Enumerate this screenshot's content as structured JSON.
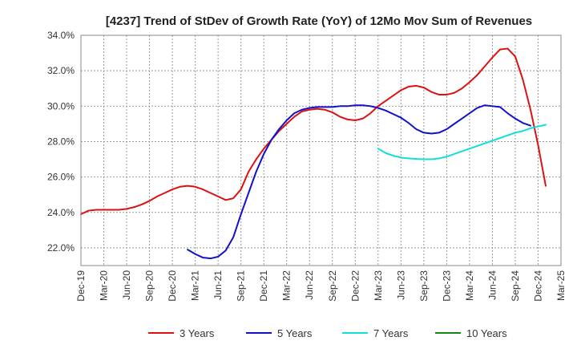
{
  "chart_data": {
    "type": "line",
    "title": "[4237]  Trend of StDev of Growth Rate (YoY) of 12Mo Mov Sum of Revenues",
    "xlabel": "",
    "ylabel": "",
    "ylim": [
      21.0,
      34.0
    ],
    "y_ticks": [
      22.0,
      24.0,
      26.0,
      28.0,
      30.0,
      32.0,
      34.0
    ],
    "y_tick_labels": [
      "22.0%",
      "24.0%",
      "26.0%",
      "28.0%",
      "30.0%",
      "32.0%",
      "34.0%"
    ],
    "x_range_months": [
      0,
      63
    ],
    "x_tick_labels": [
      "Dec-19",
      "Mar-20",
      "Jun-20",
      "Sep-20",
      "Dec-20",
      "Mar-21",
      "Jun-21",
      "Sep-21",
      "Dec-21",
      "Mar-22",
      "Jun-22",
      "Sep-22",
      "Dec-22",
      "Mar-23",
      "Jun-23",
      "Sep-23",
      "Dec-23",
      "Mar-24",
      "Jun-24",
      "Sep-24",
      "Dec-24",
      "Mar-25"
    ],
    "grid": true,
    "legend_position": "bottom",
    "series": [
      {
        "name": "3 Years",
        "color": "#dd1111",
        "start_month": 0,
        "values": [
          23.9,
          24.1,
          24.15,
          24.15,
          24.15,
          24.15,
          24.2,
          24.3,
          24.45,
          24.65,
          24.9,
          25.1,
          25.3,
          25.45,
          25.5,
          25.45,
          25.3,
          25.1,
          24.9,
          24.7,
          24.8,
          25.3,
          26.3,
          27.0,
          27.6,
          28.1,
          28.6,
          29.0,
          29.4,
          29.7,
          29.8,
          29.85,
          29.8,
          29.65,
          29.4,
          29.25,
          29.2,
          29.3,
          29.6,
          30.0,
          30.3,
          30.6,
          30.9,
          31.1,
          31.15,
          31.05,
          30.8,
          30.65,
          30.65,
          30.75,
          31.0,
          31.35,
          31.75,
          32.25,
          32.75,
          33.2,
          33.25,
          32.8,
          31.5,
          29.8,
          27.8,
          25.5
        ]
      },
      {
        "name": "5 Years",
        "color": "#1111cc",
        "start_month": 14,
        "values": [
          21.9,
          21.65,
          21.45,
          21.4,
          21.5,
          21.85,
          22.6,
          23.9,
          25.1,
          26.3,
          27.3,
          28.1,
          28.7,
          29.2,
          29.6,
          29.8,
          29.9,
          29.95,
          29.95,
          29.95,
          30.0,
          30.0,
          30.05,
          30.05,
          30.0,
          29.9,
          29.75,
          29.55,
          29.35,
          29.05,
          28.7,
          28.5,
          28.45,
          28.5,
          28.7,
          29.0,
          29.3,
          29.6,
          29.9,
          30.05,
          30.0,
          29.95,
          29.6,
          29.3,
          29.05,
          28.9
        ]
      },
      {
        "name": "7 Years",
        "color": "#11dddd",
        "start_month": 39,
        "values": [
          27.6,
          27.35,
          27.2,
          27.1,
          27.05,
          27.02,
          27.0,
          27.0,
          27.05,
          27.15,
          27.3,
          27.45,
          27.6,
          27.75,
          27.9,
          28.05,
          28.2,
          28.35,
          28.5,
          28.6,
          28.75,
          28.85,
          28.95
        ]
      },
      {
        "name": "10 Years",
        "color": "#118811",
        "start_month": 0,
        "values": []
      }
    ]
  }
}
